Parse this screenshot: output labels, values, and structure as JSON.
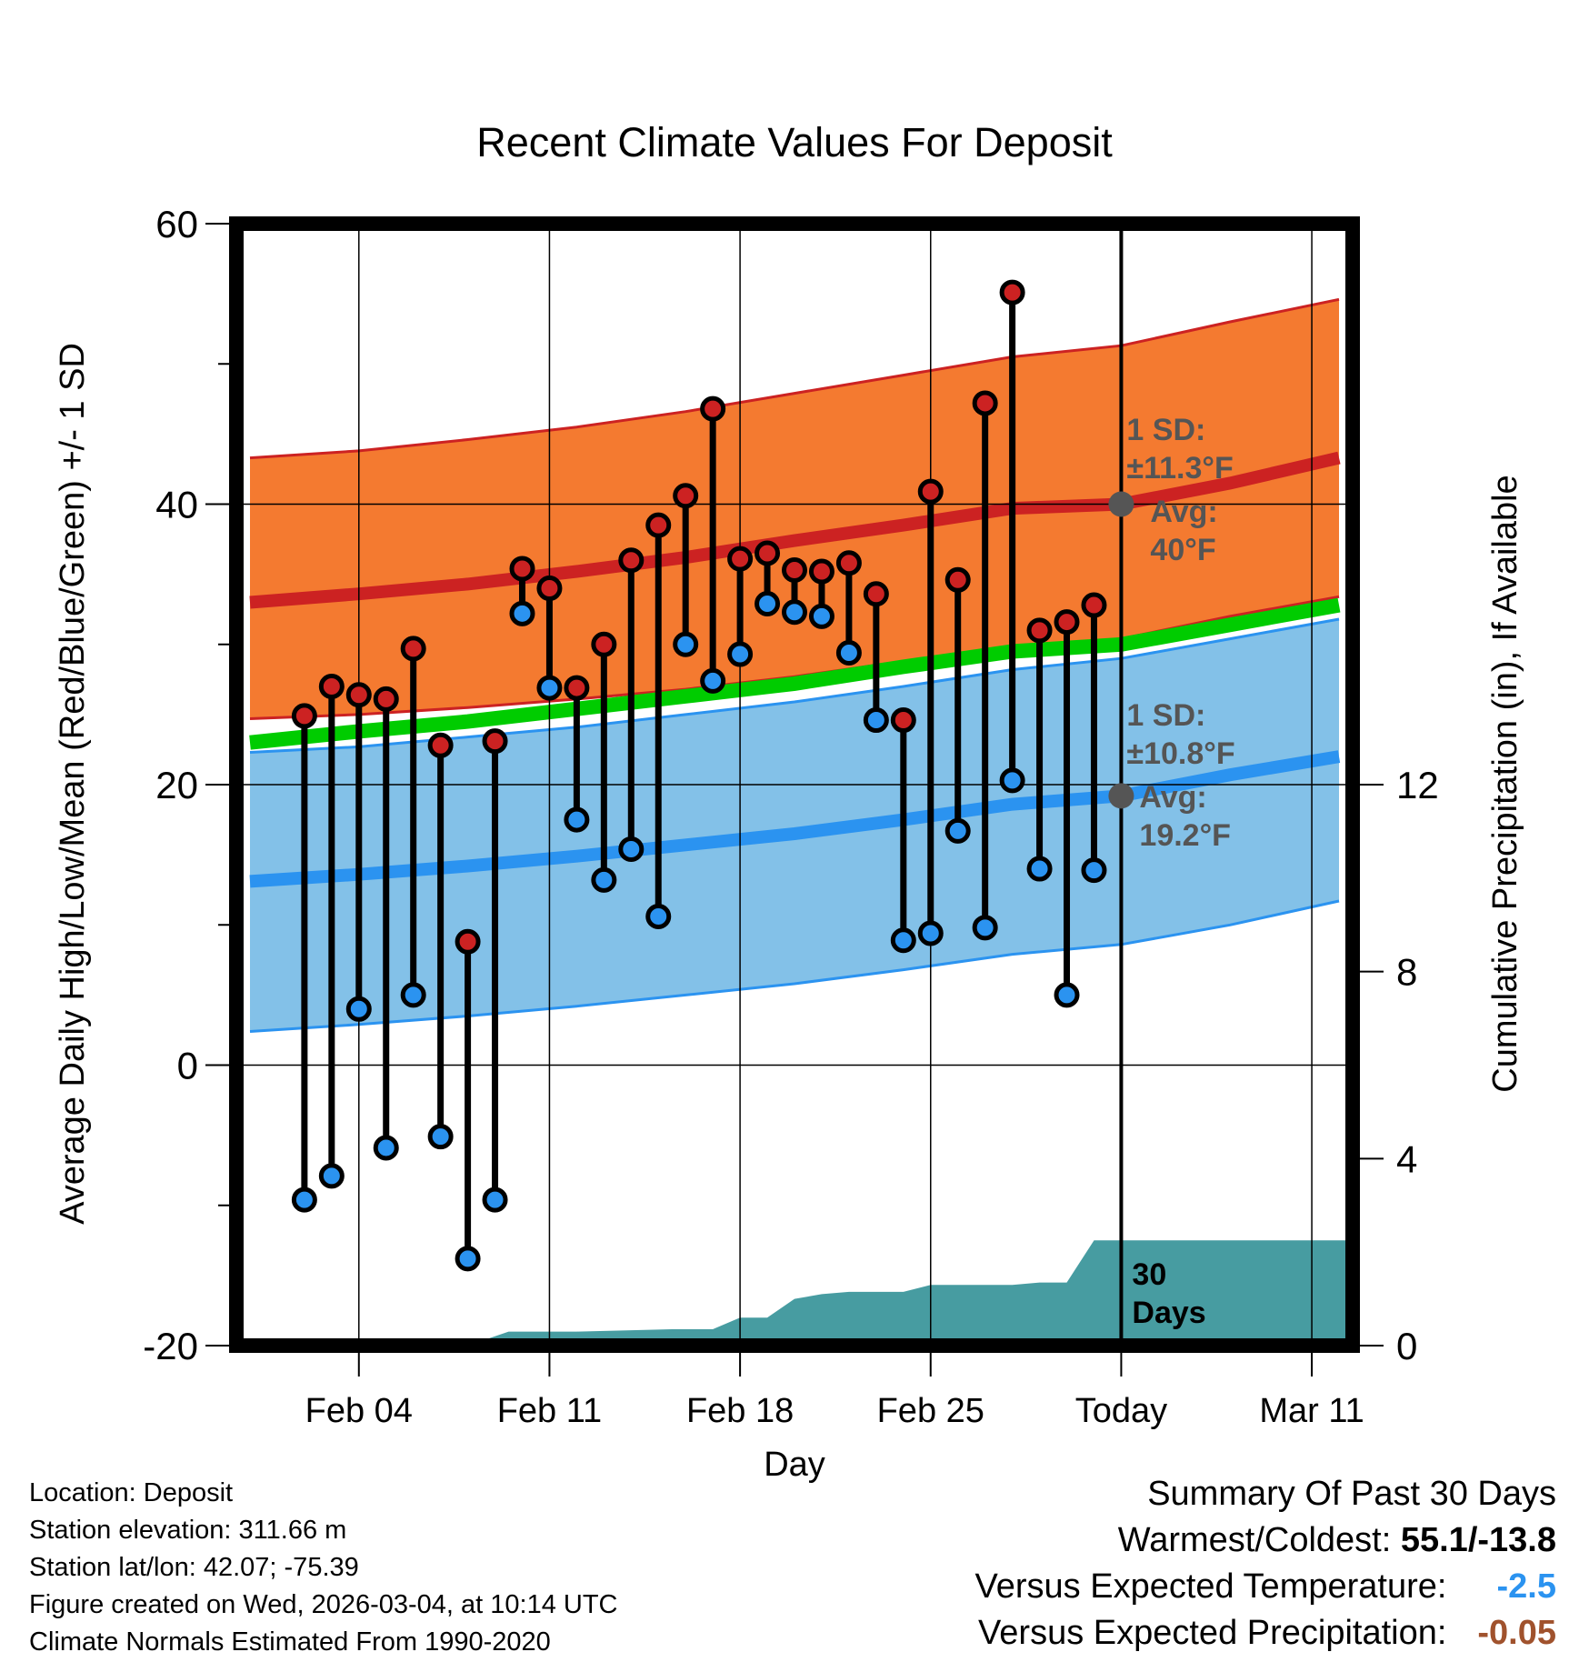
{
  "chart_data": {
    "type": "line",
    "title": "Recent Climate Values For Deposit",
    "xlabel": "Day",
    "ylabel": "Average Daily High/Low/Mean (Red/Blue/Green) +/- 1 SD",
    "ylabel_right": "Cumulative Precipitation (in), If Available",
    "ylim": [
      -20,
      60
    ],
    "yticks": [
      "60",
      "40",
      "20",
      "0",
      "-20"
    ],
    "ylim_right": [
      0,
      24
    ],
    "yticks_right": [
      "12",
      "8",
      "4",
      "0"
    ],
    "xlim_days": [
      -32.5,
      8.5
    ],
    "xticks": [
      {
        "day": -28,
        "label": "Feb 04"
      },
      {
        "day": -21,
        "label": "Feb 11"
      },
      {
        "day": -14,
        "label": "Feb 18"
      },
      {
        "day": -7,
        "label": "Feb 25"
      },
      {
        "day": 0,
        "label": "Today"
      },
      {
        "day": 7,
        "label": "Mar 11"
      }
    ],
    "daily_observations": {
      "days": [
        -30,
        -29,
        -28,
        -27,
        -26,
        -25,
        -24,
        -23,
        -22,
        -21,
        -20,
        -19,
        -18,
        -17,
        -16,
        -15,
        -14,
        -13,
        -12,
        -11,
        -10,
        -9,
        -8,
        -7,
        -6,
        -5,
        -4,
        -3,
        -2,
        -1
      ],
      "high": [
        24.9,
        27.0,
        26.4,
        26.1,
        29.7,
        22.8,
        8.8,
        23.1,
        35.4,
        34.0,
        26.9,
        30.0,
        36.0,
        38.5,
        40.6,
        46.8,
        36.1,
        36.5,
        35.3,
        35.2,
        35.8,
        33.6,
        24.6,
        40.9,
        34.6,
        47.2,
        55.1,
        31.0,
        31.6,
        32.8
      ],
      "low": [
        -9.6,
        -7.9,
        4.0,
        -5.9,
        5.0,
        -5.1,
        -13.8,
        -9.6,
        32.2,
        26.9,
        17.5,
        13.2,
        15.4,
        10.6,
        30.0,
        27.4,
        29.3,
        32.9,
        32.3,
        32.0,
        29.4,
        24.6,
        8.9,
        9.4,
        16.7,
        9.8,
        20.3,
        14.0,
        5.0,
        13.9
      ]
    },
    "normals": {
      "days": [
        -32,
        -28,
        -24,
        -20,
        -16,
        -12,
        -8,
        -4,
        0,
        4,
        8
      ],
      "high_avg": [
        33.0,
        33.6,
        34.3,
        35.2,
        36.2,
        37.4,
        38.5,
        39.7,
        40.0,
        41.5,
        43.3
      ],
      "high_upper": [
        43.3,
        43.8,
        44.6,
        45.5,
        46.6,
        47.9,
        49.2,
        50.5,
        51.3,
        53.0,
        54.6
      ],
      "high_lower": [
        24.7,
        25.0,
        25.5,
        26.1,
        26.8,
        27.7,
        28.8,
        29.8,
        30.4,
        32.0,
        33.4
      ],
      "mean": [
        23.0,
        23.8,
        24.5,
        25.4,
        26.3,
        27.2,
        28.4,
        29.5,
        30.0,
        31.4,
        32.8
      ],
      "low_avg": [
        13.1,
        13.6,
        14.2,
        14.9,
        15.7,
        16.5,
        17.5,
        18.6,
        19.2,
        20.7,
        22.0
      ],
      "low_upper": [
        22.3,
        22.7,
        23.4,
        24.1,
        25.0,
        25.9,
        27.0,
        28.2,
        29.0,
        30.4,
        31.8
      ],
      "low_lower": [
        2.4,
        2.9,
        3.5,
        4.2,
        5.0,
        5.8,
        6.8,
        7.9,
        8.6,
        10.0,
        11.7
      ]
    },
    "precip_cumulative": {
      "days": [
        -32.5,
        -24,
        -22.5,
        -20,
        -16.5,
        -15,
        -14,
        -13,
        -12,
        -11,
        -10,
        -9,
        -8,
        -7,
        -6,
        -5,
        -4,
        -3,
        -2,
        -1,
        0,
        8.5
      ],
      "values": [
        0,
        0,
        0.3,
        0.3,
        0.35,
        0.35,
        0.6,
        0.6,
        1.0,
        1.1,
        1.15,
        1.15,
        1.15,
        1.3,
        1.3,
        1.3,
        1.3,
        1.35,
        1.35,
        2.25,
        2.25,
        2.25
      ]
    },
    "annotations": {
      "high_sd_label": "1 SD:",
      "high_sd_value": "±11.3°F",
      "high_avg_label": "Avg:",
      "high_avg_value": "40°F",
      "high_avg": 40,
      "low_sd_label": "1 SD:",
      "low_sd_value": "±10.8°F",
      "low_avg_label": "Avg:",
      "low_avg_value": "19.2°F",
      "low_avg": 19.2,
      "period_line1": "30",
      "period_line2": "Days"
    }
  },
  "station_info": {
    "location": "Location: Deposit",
    "elevation": "Station elevation: 311.66 m",
    "latlon": "Station lat/lon: 42.07; -75.39",
    "created": "Figure created on Wed, 2026-03-04, at 10:14 UTC",
    "normals_period": "Climate Normals Estimated From 1990-2020"
  },
  "summary": {
    "heading": "Summary Of Past 30 Days",
    "warm_cold_label": "Warmest/Coldest:",
    "warm_cold_value": "55.1/-13.8",
    "temp_label": "Versus Expected Temperature:",
    "temp_value": "-2.5",
    "precip_label": "Versus Expected Precipitation:",
    "precip_value": "-0.05"
  },
  "colors": {
    "high_band": "#f47a30",
    "high_line": "#cc2222",
    "low_band": "#83c1e8",
    "low_line": "#2b93f0",
    "mean_line": "#00cc00",
    "precip_fill": "#479ca1",
    "high_dot": "#cc2222",
    "low_dot": "#2b93f0",
    "annotation": "#555555"
  }
}
